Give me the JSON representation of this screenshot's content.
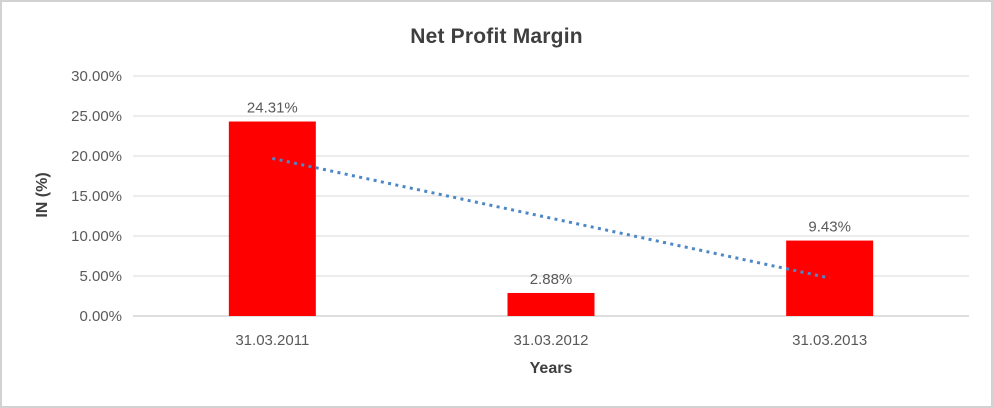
{
  "chart_data": {
    "type": "bar",
    "title": "Net Profit Margin",
    "xlabel": "Years",
    "ylabel": "IN (%)",
    "categories": [
      "31.03.2011",
      "31.03.2012",
      "31.03.2013"
    ],
    "series": [
      {
        "name": "Net Profit Margin",
        "values": [
          24.31,
          2.88,
          9.43
        ]
      }
    ],
    "data_labels": [
      "24.31%",
      "2.88%",
      "9.43%"
    ],
    "y_ticks": [
      "30.00%",
      "25.00%",
      "20.00%",
      "15.00%",
      "10.00%",
      "5.00%",
      "0.00%"
    ],
    "ylim": [
      0,
      30
    ],
    "y_tick_step": 5,
    "grid": true,
    "legend": "none",
    "bar_color": "#FF0000",
    "gridline_color": "#D9D9D9",
    "axis_line_color": "#BFBFBF",
    "tick_label_color": "#595959",
    "title_color": "#3F3F3F",
    "trendline": {
      "type": "linear",
      "style": "dotted",
      "color": "#4E87C6",
      "start_value": 19.7,
      "end_value": 4.75
    }
  }
}
